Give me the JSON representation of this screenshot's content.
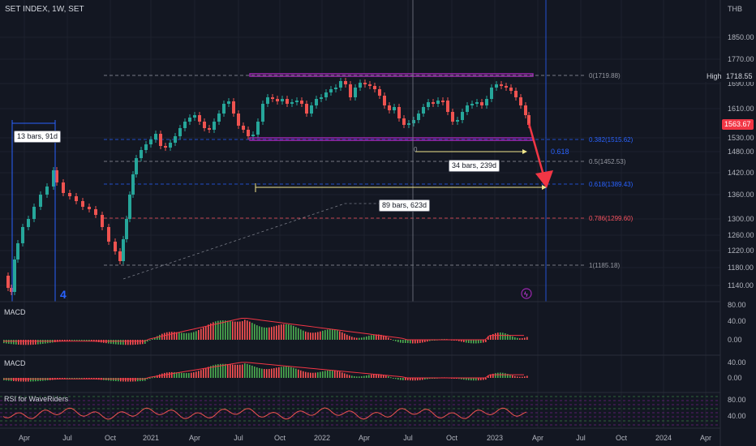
{
  "header": {
    "symbol_title": "SET INDEX, 1W, SET",
    "currency": "THB"
  },
  "price_axis": {
    "ticks": [
      "1850.00",
      "1770.00",
      "1690.00",
      "1610.00",
      "1530.00",
      "1480.00",
      "1420.00",
      "1360.00",
      "1300.00",
      "1260.00",
      "1220.00",
      "1180.00",
      "1140.00"
    ],
    "high_label": "High",
    "high_value": "1718.55",
    "last_price": "1563.67"
  },
  "fib": {
    "levels": [
      {
        "label": "0(1719.88)",
        "color": "#9598a1"
      },
      {
        "label": "0.382(1515.62)",
        "color": "#2962ff"
      },
      {
        "label": "0.5(1452.53)",
        "color": "#9598a1"
      },
      {
        "label": "0.618(1389.43)",
        "color": "#2962ff"
      },
      {
        "label": "0.786(1299.60)",
        "color": "#f7525f"
      },
      {
        "label": "1(1185.18)",
        "color": "#9598a1"
      }
    ],
    "extra_label": "0.618"
  },
  "annotations": {
    "bars_13": "13 bars, 91d",
    "bars_34": "34 bars, 239d",
    "bars_89": "89 bars, 623d",
    "num_4": "4",
    "zero": "0"
  },
  "time_axis": {
    "labels": [
      "Apr",
      "Jul",
      "Oct",
      "2021",
      "Apr",
      "Jul",
      "Oct",
      "2022",
      "Apr",
      "Jul",
      "Oct",
      "2023",
      "Apr",
      "Jul",
      "Oct",
      "2024",
      "Apr"
    ]
  },
  "indicators": {
    "macd1": {
      "title": "MACD",
      "ticks": [
        "80.00",
        "40.00",
        "0.00"
      ]
    },
    "macd2": {
      "title": "MACD",
      "ticks": [
        "40.00",
        "0.00"
      ]
    },
    "rsi": {
      "title": "RSI for WaveRiders",
      "ticks": [
        "80.00",
        "40.00"
      ]
    }
  },
  "colors": {
    "up": "#26a69a",
    "down": "#ef5350",
    "macd_up": "#4caf50",
    "macd_down": "#ff5252",
    "fib_box": "#9c27b0",
    "accent": "#2962ff"
  }
}
